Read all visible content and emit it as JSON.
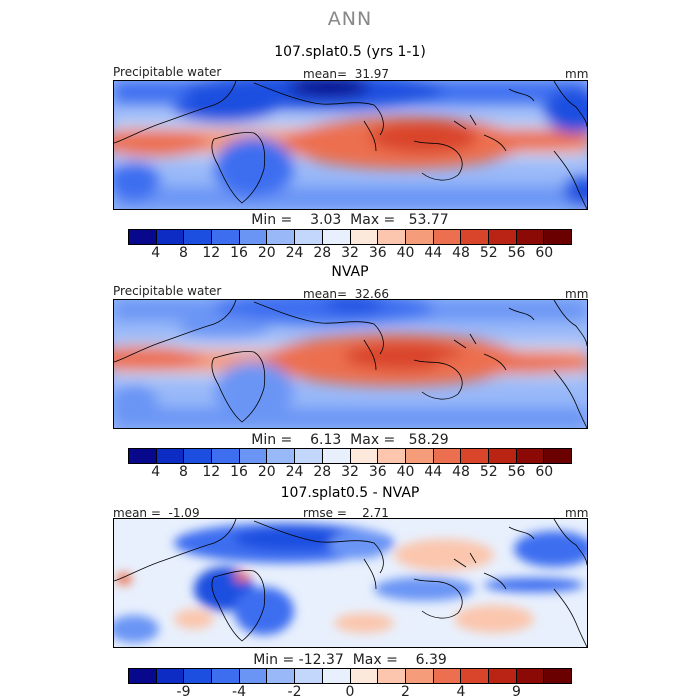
{
  "figure": {
    "title": "ANN"
  },
  "panels": [
    {
      "title": "107.splat0.5 (yrs 1-1)",
      "left_label": "Precipitable water",
      "center_label": "mean=  31.97",
      "units": "mm",
      "min_max": "Min =    3.03  Max =   53.77",
      "colorbar_ticks": [
        "4",
        "8",
        "12",
        "16",
        "20",
        "24",
        "28",
        "32",
        "36",
        "40",
        "44",
        "48",
        "52",
        "56",
        "60"
      ],
      "colorbar_colors": [
        "#08088c",
        "#0d2cc4",
        "#1c4fe0",
        "#3d6ef0",
        "#6b95f5",
        "#98b8f8",
        "#c3d6fb",
        "#e8f0fd",
        "#fde8dc",
        "#fbc6ad",
        "#f59c7b",
        "#ec704f",
        "#d9452b",
        "#b92414",
        "#8c0a06",
        "#6a0000"
      ]
    },
    {
      "title": "NVAP",
      "left_label": "Precipitable water",
      "center_label": "mean=  32.66",
      "units": "mm",
      "min_max": "Min =    6.13  Max =   58.29",
      "colorbar_ticks": [
        "4",
        "8",
        "12",
        "16",
        "20",
        "24",
        "28",
        "32",
        "36",
        "40",
        "44",
        "48",
        "52",
        "56",
        "60"
      ],
      "colorbar_colors": [
        "#08088c",
        "#0d2cc4",
        "#1c4fe0",
        "#3d6ef0",
        "#6b95f5",
        "#98b8f8",
        "#c3d6fb",
        "#e8f0fd",
        "#fde8dc",
        "#fbc6ad",
        "#f59c7b",
        "#ec704f",
        "#d9452b",
        "#b92414",
        "#8c0a06",
        "#6a0000"
      ]
    },
    {
      "title": "107.splat0.5 - NVAP",
      "left_label": "mean =  -1.09",
      "center_label": "rmse =    2.71",
      "units": "mm",
      "min_max": "Min = -12.37  Max =    6.39",
      "colorbar_ticks": [
        "-9",
        "-4",
        "-2",
        "0",
        "2",
        "4",
        "9"
      ],
      "colorbar_colors": [
        "#08088c",
        "#0d2cc4",
        "#1c4fe0",
        "#3d6ef0",
        "#6b95f5",
        "#98b8f8",
        "#c3d6fb",
        "#e8f0fd",
        "#fde8dc",
        "#fbc6ad",
        "#f59c7b",
        "#ec704f",
        "#d9452b",
        "#b92414",
        "#8c0a06",
        "#6a0000"
      ]
    }
  ]
}
